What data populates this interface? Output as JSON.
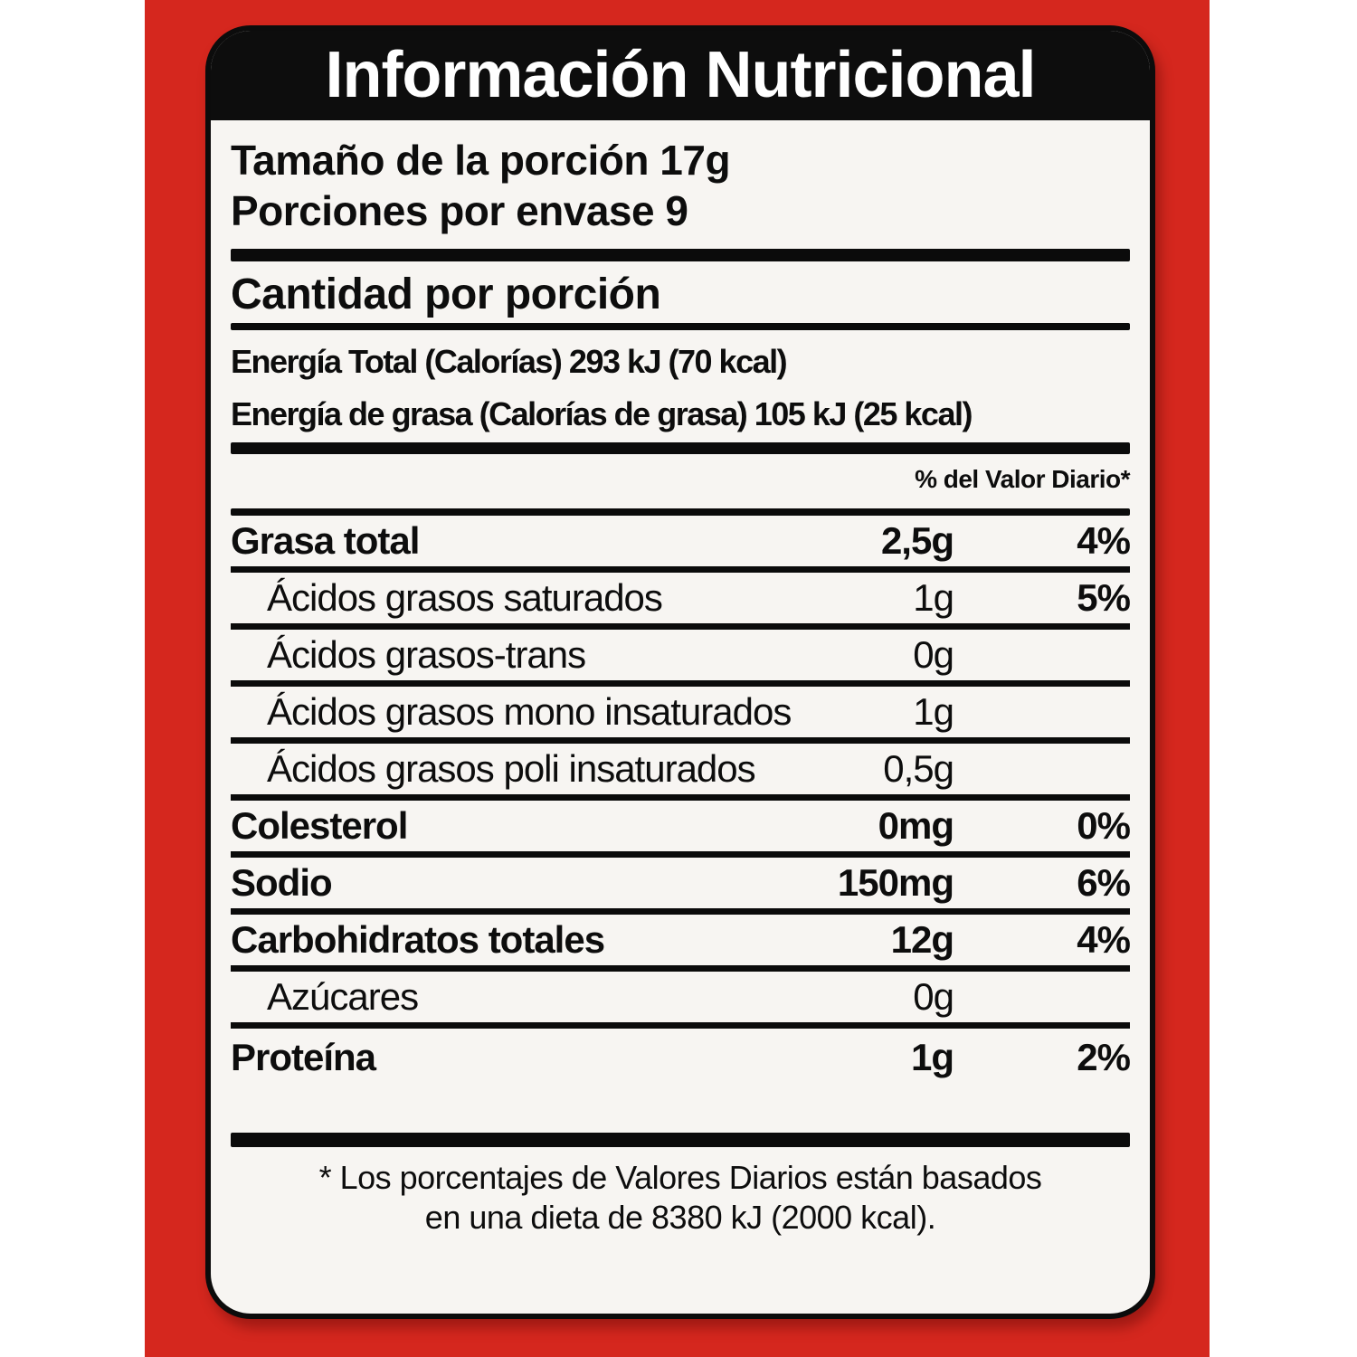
{
  "colors": {
    "page_bg": "#ffffff",
    "package_red": "#d5271e",
    "label_bg": "#f7f5f2",
    "header_bg": "#0d0d0d",
    "title_color": "#ffffff",
    "text_color": "#0d0d0d"
  },
  "label": {
    "title": "Información Nutricional",
    "serving_size": "Tamaño de la porción 17g",
    "servings_per_container": "Porciones por envase 9",
    "amount_per_serving": "Cantidad por porción",
    "energy_total": "Energía Total (Calorías) 293 kJ (70 kcal)",
    "energy_fat": "Energía de grasa (Calorías de grasa) 105 kJ (25 kcal)",
    "dv_header": "% del Valor Diario*",
    "nutrients": [
      {
        "name": "Grasa total",
        "amount": "2,5g",
        "dv": "4%",
        "bold": true,
        "indent": false
      },
      {
        "name": "Ácidos grasos saturados",
        "amount": "1g",
        "dv": "5%",
        "bold": false,
        "indent": true
      },
      {
        "name": "Ácidos grasos-trans",
        "amount": "0g",
        "dv": "",
        "bold": false,
        "indent": true
      },
      {
        "name": "Ácidos grasos mono insaturados",
        "amount": "1g",
        "dv": "",
        "bold": false,
        "indent": true
      },
      {
        "name": "Ácidos grasos poli insaturados",
        "amount": "0,5g",
        "dv": "",
        "bold": false,
        "indent": true
      },
      {
        "name": "Colesterol",
        "amount": "0mg",
        "dv": "0%",
        "bold": true,
        "indent": false
      },
      {
        "name": "Sodio",
        "amount": "150mg",
        "dv": "6%",
        "bold": true,
        "indent": false
      },
      {
        "name": "Carbohidratos totales",
        "amount": "12g",
        "dv": "4%",
        "bold": true,
        "indent": false
      },
      {
        "name": "Azúcares",
        "amount": "0g",
        "dv": "",
        "bold": false,
        "indent": true
      },
      {
        "name": "Proteína",
        "amount": "1g",
        "dv": "2%",
        "bold": true,
        "indent": false
      }
    ],
    "footnote_line1": "* Los porcentajes de Valores Diarios están basados",
    "footnote_line2": "en una dieta de 8380 kJ (2000 kcal)."
  }
}
